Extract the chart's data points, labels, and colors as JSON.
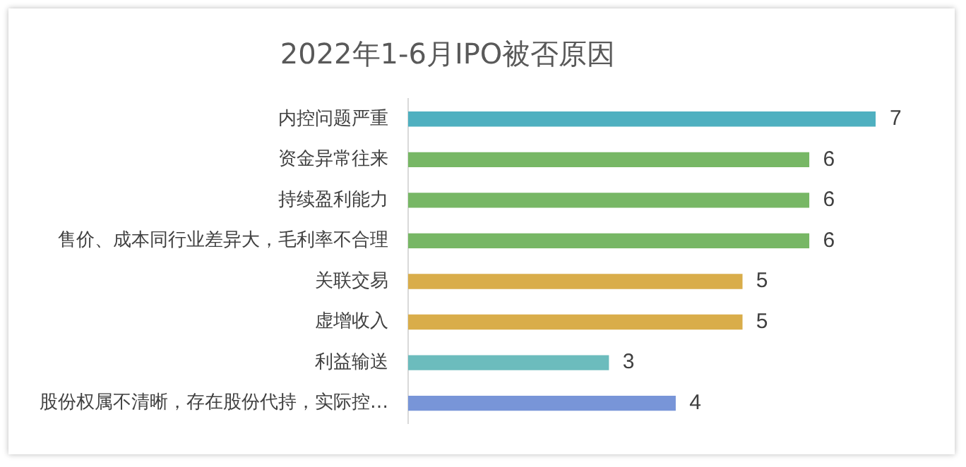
{
  "chart_data": {
    "type": "bar",
    "orientation": "horizontal",
    "title": "2022年1-6月IPO被否原因",
    "categories": [
      "内控问题严重",
      "资金异常往来",
      "持续盈利能力",
      "售价、成本同行业差异大，毛利率不合理",
      "关联交易",
      "虚增收入",
      "利益输送",
      "股份权属不清晰，存在股份代持，实际控…"
    ],
    "values": [
      7,
      6,
      6,
      6,
      5,
      5,
      3,
      4
    ],
    "colors": [
      "#4fb0c0",
      "#77b765",
      "#77b765",
      "#77b765",
      "#d9ad4a",
      "#d9ad4a",
      "#6cbcbd",
      "#7895d8"
    ],
    "tick_labels": "y",
    "data_labels": true,
    "grid": false,
    "legend": false
  }
}
